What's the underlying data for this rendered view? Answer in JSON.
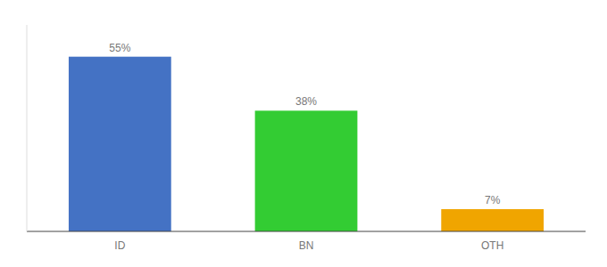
{
  "chart_data": {
    "type": "bar",
    "categories": [
      "ID",
      "BN",
      "OTH"
    ],
    "values": [
      55,
      38,
      7
    ],
    "value_labels": [
      "55%",
      "38%",
      "7%"
    ],
    "data_labels": true,
    "colors": [
      "#4472c4",
      "#33cc33",
      "#f0a500"
    ],
    "ylim": [
      0,
      65
    ],
    "tick_labels": "x"
  }
}
